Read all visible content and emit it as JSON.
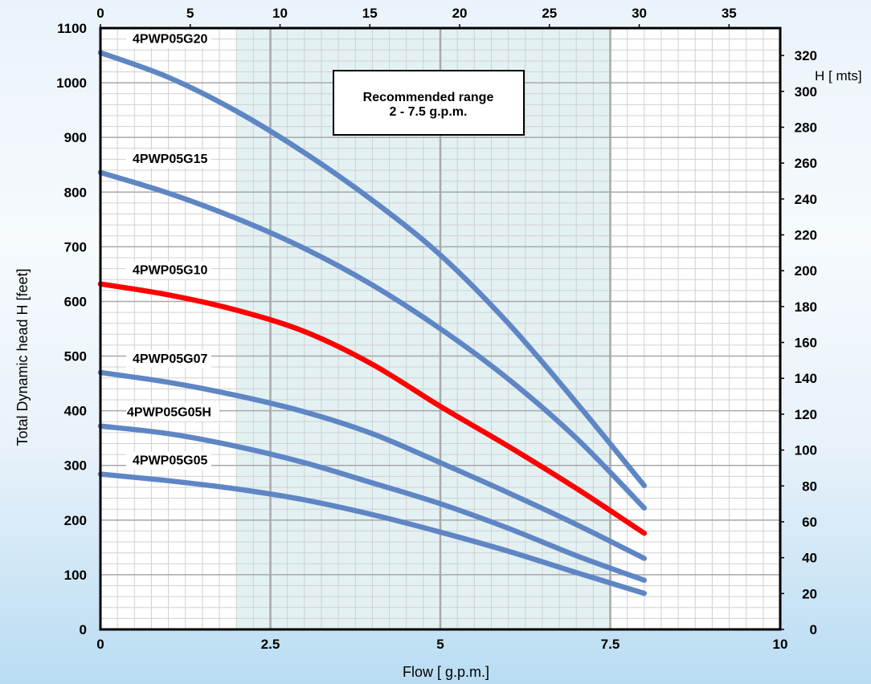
{
  "chart_data": {
    "type": "line",
    "xlabel": "Flow [ g.p.m.]",
    "ylabel": "Total Dynamic head H [feet]",
    "y2label": "H [ mts]",
    "xlim": [
      0,
      10
    ],
    "ylim": [
      0,
      1100
    ],
    "x_ticks": [
      "0",
      "2.5",
      "5",
      "7.5",
      "10"
    ],
    "x_tick_values": [
      0,
      2.5,
      5,
      7.5,
      10
    ],
    "x2_ticks": [
      "0",
      "5",
      "10",
      "15",
      "20",
      "25",
      "30",
      "35"
    ],
    "x2_tick_values": [
      0,
      5,
      10,
      15,
      20,
      25,
      30,
      35
    ],
    "x2_scale": 3.785,
    "y_ticks": [
      "0",
      "100",
      "200",
      "300",
      "400",
      "500",
      "600",
      "700",
      "800",
      "900",
      "1000",
      "1100"
    ],
    "y_tick_values": [
      0,
      100,
      200,
      300,
      400,
      500,
      600,
      700,
      800,
      900,
      1000,
      1100
    ],
    "y2_ticks": [
      "0",
      "20",
      "40",
      "60",
      "80",
      "100",
      "120",
      "140",
      "160",
      "180",
      "200",
      "220",
      "240",
      "260",
      "280",
      "300",
      "320"
    ],
    "y2_tick_values": [
      0,
      20,
      40,
      60,
      80,
      100,
      120,
      140,
      160,
      180,
      200,
      220,
      240,
      260,
      280,
      300,
      320
    ],
    "y2_scale": 0.3048,
    "grid": true,
    "recommended_range": {
      "x_from": 2,
      "x_to": 7.5,
      "title": "Recommended range",
      "subtitle": "2 - 7.5 g.p.m.",
      "fill_color": "#e3f1f3"
    },
    "series": [
      {
        "name": "4PWP05G20",
        "color": "#5f86c4",
        "x": [
          0,
          1,
          2,
          3,
          4,
          5,
          6,
          7,
          8
        ],
        "y": [
          1055,
          1010,
          948,
          872,
          785,
          685,
          560,
          415,
          263
        ]
      },
      {
        "name": "4PWP05G15",
        "color": "#5f86c4",
        "x": [
          0,
          1,
          2,
          3,
          4,
          5,
          6,
          7,
          8
        ],
        "y": [
          836,
          798,
          752,
          697,
          630,
          550,
          458,
          350,
          222
        ]
      },
      {
        "name": "4PWP05G10",
        "color": "#ff0000",
        "x": [
          0,
          1,
          2,
          3,
          4,
          5,
          6,
          7,
          8
        ],
        "y": [
          632,
          612,
          584,
          545,
          485,
          408,
          335,
          258,
          176
        ]
      },
      {
        "name": "4PWP05G07",
        "color": "#5f86c4",
        "x": [
          0,
          1,
          2,
          3,
          4,
          5,
          6,
          7,
          8
        ],
        "y": [
          470,
          452,
          428,
          398,
          358,
          305,
          250,
          192,
          130
        ]
      },
      {
        "name": "4PWP05G05H",
        "color": "#5f86c4",
        "x": [
          0,
          1,
          2,
          3,
          4,
          5,
          6,
          7,
          8
        ],
        "y": [
          372,
          358,
          335,
          305,
          268,
          230,
          185,
          135,
          90
        ]
      },
      {
        "name": "4PWP05G05",
        "color": "#5f86c4",
        "x": [
          0,
          1,
          2,
          3,
          4,
          5,
          6,
          7,
          8
        ],
        "y": [
          284,
          272,
          257,
          237,
          210,
          178,
          143,
          104,
          66
        ]
      }
    ]
  }
}
